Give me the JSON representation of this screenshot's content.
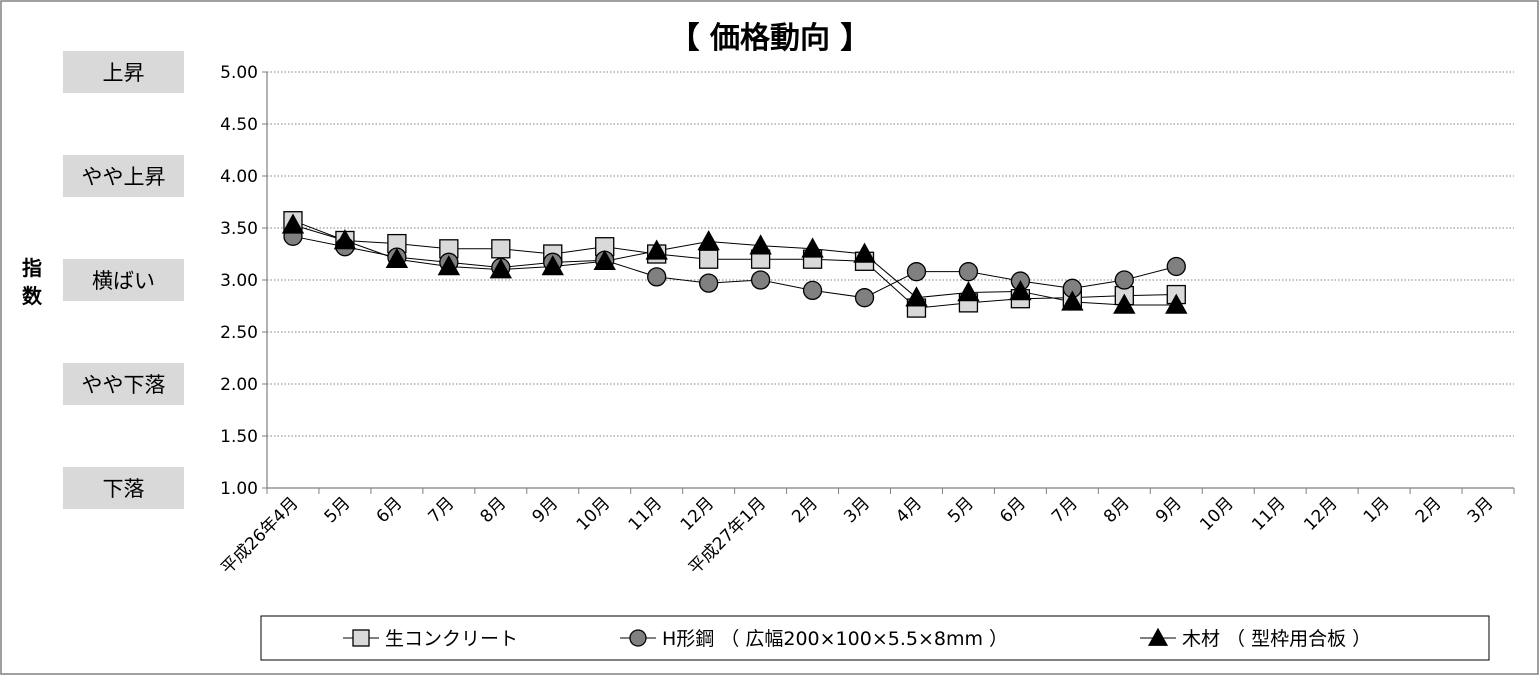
{
  "chart_data": {
    "type": "line",
    "title": "【 価格動向 】",
    "ylabel": "指数",
    "ylim": [
      1.0,
      5.0
    ],
    "y_ticks": [
      "1.00",
      "1.50",
      "2.00",
      "2.50",
      "3.00",
      "3.50",
      "4.00",
      "4.50",
      "5.00"
    ],
    "y_ticks_values": [
      1.0,
      1.5,
      2.0,
      2.5,
      3.0,
      3.5,
      4.0,
      4.5,
      5.0
    ],
    "level_labels": [
      {
        "label": "上昇",
        "value": 5.0
      },
      {
        "label": "やや上昇",
        "value": 4.0
      },
      {
        "label": "横ばい",
        "value": 3.0
      },
      {
        "label": "やや下落",
        "value": 2.0
      },
      {
        "label": "下落",
        "value": 1.0
      }
    ],
    "categories": [
      "平成26年4月",
      "5月",
      "6月",
      "7月",
      "8月",
      "9月",
      "10月",
      "11月",
      "12月",
      "平成27年1月",
      "2月",
      "3月",
      "4月",
      "5月",
      "6月",
      "7月",
      "8月",
      "9月",
      "10月",
      "11月",
      "12月",
      "1月",
      "2月",
      "3月"
    ],
    "grid": true,
    "legend_position": "bottom",
    "series": [
      {
        "name": "生コンクリート",
        "marker": "square",
        "marker_color": "#d9d9d9",
        "values": [
          3.57,
          3.38,
          3.35,
          3.3,
          3.3,
          3.25,
          3.32,
          3.25,
          3.2,
          3.2,
          3.2,
          3.18,
          2.73,
          2.78,
          2.82,
          2.83,
          2.85,
          2.86,
          null,
          null,
          null,
          null,
          null,
          null
        ]
      },
      {
        "name": "H形鋼 （ 広幅200×100×5.5×8mm ）",
        "marker": "circle",
        "marker_color": "#808080",
        "values": [
          3.42,
          3.32,
          3.22,
          3.17,
          3.12,
          3.17,
          3.19,
          3.03,
          2.97,
          3.0,
          2.9,
          2.83,
          3.08,
          3.08,
          2.99,
          2.92,
          3.0,
          3.13,
          null,
          null,
          null,
          null,
          null,
          null
        ]
      },
      {
        "name": "木材 （ 型枠用合板 ）",
        "marker": "triangle",
        "marker_color": "#000000",
        "values": [
          3.53,
          3.38,
          3.2,
          3.13,
          3.1,
          3.13,
          3.18,
          3.28,
          3.37,
          3.33,
          3.3,
          3.25,
          2.83,
          2.88,
          2.89,
          2.79,
          2.76,
          2.76,
          null,
          null,
          null,
          null,
          null,
          null
        ]
      }
    ]
  },
  "colors": {
    "grid": "#808080",
    "axis": "#808080",
    "label_box": "#d9d9d9",
    "line": "#000000"
  }
}
